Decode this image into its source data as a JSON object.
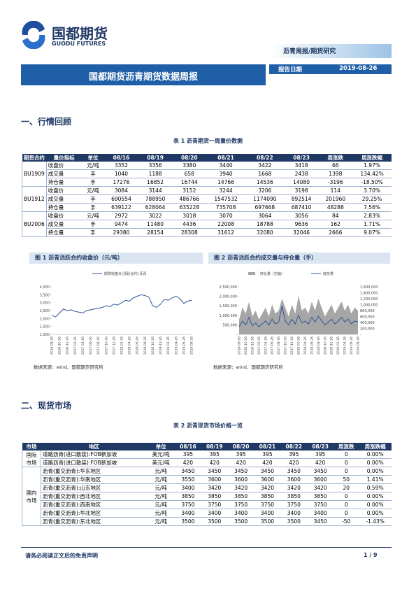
{
  "header": {
    "logo_cn": "国都期货",
    "logo_en": "GUODU FUTURES",
    "category": "沥青周报/期货研究",
    "title": "国都期货沥青期货数据周报",
    "date_label": "报告日期",
    "date": "2019-08-26"
  },
  "section1": {
    "heading": "一、行情回顾",
    "table": {
      "title": "表 1 沥青期货一周量价数据",
      "header": [
        "期货合约",
        "量价指标",
        "单位",
        "08/16",
        "08/19",
        "08/20",
        "08/21",
        "08/22",
        "08/23",
        "周涨跌",
        "周涨跌幅"
      ],
      "groups": [
        {
          "name": "BU1909",
          "rows": [
            [
              "收盘价",
              "元/吨",
              "3352",
              "3356",
              "3380",
              "3440",
              "3422",
              "3418",
              "66",
              "1.97%"
            ],
            [
              "成交量",
              "手",
              "1040",
              "1188",
              "658",
              "3940",
              "1668",
              "2438",
              "1398",
              "134.42%"
            ],
            [
              "持仓量",
              "手",
              "17276",
              "16852",
              "16744",
              "14766",
              "14536",
              "14080",
              "-3196",
              "-18.50%"
            ]
          ]
        },
        {
          "name": "BU1912",
          "rows": [
            [
              "收盘价",
              "元/吨",
              "3084",
              "3144",
              "3152",
              "3244",
              "3206",
              "3198",
              "114",
              "3.70%"
            ],
            [
              "成交量",
              "手",
              "690554",
              "788950",
              "486766",
              "1547532",
              "1174090",
              "892514",
              "201960",
              "29.25%"
            ],
            [
              "持仓量",
              "手",
              "639122",
              "628064",
              "635228",
              "735708",
              "697668",
              "687410",
              "48288",
              "7.56%"
            ]
          ]
        },
        {
          "name": "BU2006",
          "rows": [
            [
              "收盘价",
              "元/吨",
              "2972",
              "3022",
              "3018",
              "3070",
              "3064",
              "3056",
              "84",
              "2.83%"
            ],
            [
              "成交量",
              "手",
              "9474",
              "11480",
              "4436",
              "22008",
              "18788",
              "9636",
              "162",
              "1.71%"
            ],
            [
              "持仓量",
              "手",
              "29380",
              "28154",
              "28308",
              "31612",
              "32080",
              "32046",
              "2666",
              "9.07%"
            ]
          ]
        }
      ]
    }
  },
  "chart_data": [
    {
      "type": "line",
      "title": "图 1 沥青活跃合约收盘价（元/吨）",
      "source": "数据来源：wind、国都期货研究所",
      "categories": [
        "2016-08-26",
        null,
        "2016-10-26",
        null,
        "2016-12-26",
        null,
        "2017-02-26",
        null,
        "2017-04-26",
        null,
        "2017-06-26",
        null,
        "2017-08-26",
        null,
        "2017-10-26",
        null,
        "2017-12-26",
        null,
        "2018-02-26",
        null,
        "2018-04-26",
        null,
        "2018-06-26",
        null,
        "2018-08-26",
        null,
        "2018-10-26",
        null,
        "2018-12-26",
        null,
        "2019-02-26",
        null,
        "2019-04-26",
        null,
        "2019-06-26",
        null,
        "2019-08-26"
      ],
      "series": [
        {
          "name": "期货收盘价(活跃合约):沥青",
          "color": "#2e5597",
          "values": [
            2200,
            2100,
            2350,
            2600,
            2500,
            2550,
            2450,
            2400,
            2350,
            2500,
            2550,
            2600,
            2650,
            2700,
            2800,
            2750,
            2900,
            2850,
            3000,
            3150,
            3100,
            3300,
            3400,
            3500,
            3450,
            3350,
            2800,
            2700,
            2900,
            3200,
            3150,
            3300,
            3400,
            3250,
            2950,
            3100,
            3150
          ]
        }
      ],
      "ylim": [
        1000,
        4000
      ],
      "yticks": [
        {
          "value": 1000,
          "label": "1,000"
        },
        {
          "value": 1500,
          "label": "1,500"
        },
        {
          "value": 2000,
          "label": "2,000"
        },
        {
          "value": 2500,
          "label": "2,500"
        },
        {
          "value": 3000,
          "label": "3,000"
        },
        {
          "value": 3500,
          "label": "3,500"
        },
        {
          "value": 4000,
          "label": "4,000"
        }
      ]
    },
    {
      "type": "area",
      "title": "图 2 沥青活跃合约成交量与持仓量（手）",
      "source": "数据来源：wind、国都期货研究所",
      "categories": [
        "2016-08-26",
        null,
        "2016-10-26",
        null,
        "2016-12-26",
        null,
        "2017-02-26",
        null,
        "2017-04-26",
        null,
        "2017-06-26",
        null,
        "2017-08-26",
        null,
        "2017-10-26",
        null,
        "2017-12-26",
        null,
        "2018-02-26",
        null,
        "2018-04-26",
        null,
        "2018-06-26",
        null,
        "2018-08-26",
        null,
        "2018-10-26",
        null,
        "2018-12-26",
        null,
        "2019-02-26",
        null,
        "2019-04-26",
        null,
        "2019-06-26",
        null,
        "2019-08-26"
      ],
      "series": [
        {
          "name": "持仓量（右轴）",
          "color": "#a6a6a6",
          "axis": "y2",
          "values": [
            500000,
            900000,
            700000,
            1100000,
            600000,
            800000,
            500000,
            700000,
            900000,
            600000,
            1000000,
            700000,
            800000,
            1200000,
            900000,
            600000,
            1000000,
            700000,
            1300000,
            800000,
            900000,
            700000,
            1100000,
            800000,
            1200000,
            900000,
            600000,
            800000,
            1000000,
            700000,
            900000,
            1100000,
            800000,
            1000000,
            700000,
            900000,
            800000
          ]
        },
        {
          "name": "成交量",
          "color": "#2e5597",
          "values": [
            400000,
            700000,
            500000,
            900000,
            450000,
            600000,
            400000,
            550000,
            700000,
            500000,
            800000,
            550000,
            650000,
            1500000,
            700000,
            500000,
            800000,
            550000,
            1000000,
            600000,
            700000,
            550000,
            900000,
            650000,
            950000,
            700000,
            500000,
            650000,
            800000,
            550000,
            700000,
            900000,
            650000,
            800000,
            550000,
            700000,
            650000
          ]
        }
      ],
      "ylim": [
        0,
        2500000
      ],
      "yticks": [
        {
          "value": 0,
          "label": "-"
        },
        {
          "value": 500000,
          "label": "500,000"
        },
        {
          "value": 1000000,
          "label": "1,000,000"
        },
        {
          "value": 1500000,
          "label": "1,500,000"
        },
        {
          "value": 2000000,
          "label": "2,000,000"
        },
        {
          "value": 2500000,
          "label": "2,500,000"
        }
      ],
      "y2lim": [
        0,
        1600000
      ],
      "y2ticks": [
        {
          "value": 0,
          "label": "-"
        },
        {
          "value": 200000,
          "label": "200,000"
        },
        {
          "value": 400000,
          "label": "400,000"
        },
        {
          "value": 600000,
          "label": "600,000"
        },
        {
          "value": 800000,
          "label": "800,000"
        },
        {
          "value": 1000000,
          "label": "1,000,000"
        },
        {
          "value": 1200000,
          "label": "1,200,000"
        },
        {
          "value": 1400000,
          "label": "1,400,000"
        },
        {
          "value": 1600000,
          "label": "1,600,000"
        }
      ]
    }
  ],
  "section2": {
    "heading": "二、现货市场",
    "table": {
      "title": "表 2 沥青现货市场价格一览",
      "header": [
        "市场",
        "地区",
        "单位",
        "08/16",
        "08/19",
        "08/20",
        "08/21",
        "08/22",
        "08/23",
        "周涨跌",
        "周涨跌幅"
      ],
      "groups": [
        {
          "name": "国际市场",
          "rows": [
            [
              "道路沥青(进口散装):FOB新加坡",
              "美元/吨",
              "395",
              "395",
              "395",
              "395",
              "395",
              "395",
              "0",
              "0.00%"
            ],
            [
              "道路沥青(进口散装):FOB新加坡",
              "美元/吨",
              "420",
              "420",
              "420",
              "420",
              "420",
              "420",
              "0",
              "0.00%"
            ]
          ]
        },
        {
          "name": "国内市场",
          "rows": [
            [
              "沥青(重交沥青):华东地区",
              "元/吨",
              "3450",
              "3450",
              "3450",
              "3450",
              "3450",
              "3450",
              "0",
              "0.00%"
            ],
            [
              "沥青(重交沥青):华南地区",
              "元/吨",
              "3550",
              "3600",
              "3600",
              "3600",
              "3600",
              "3600",
              "50",
              "1.41%"
            ],
            [
              "沥青(重交沥青):山东地区",
              "元/吨",
              "3400",
              "3420",
              "3420",
              "3420",
              "3420",
              "3420",
              "20",
              "0.59%"
            ],
            [
              "沥青(重交沥青):西北地区",
              "元/吨",
              "3850",
              "3850",
              "3850",
              "3850",
              "3850",
              "3850",
              "0",
              "0.00%"
            ],
            [
              "沥青(重交沥青):西南地区",
              "元/吨",
              "3750",
              "3750",
              "3750",
              "3750",
              "3750",
              "3750",
              "0",
              "0.00%"
            ],
            [
              "沥青(重交沥青):华北地区",
              "元/吨",
              "3400",
              "3400",
              "3400",
              "3400",
              "3400",
              "3400",
              "0",
              "0.00%"
            ],
            [
              "沥青(重交沥青):东北地区",
              "元/吨",
              "3500",
              "3500",
              "3500",
              "3500",
              "3500",
              "3450",
              "-50",
              "-1.43%"
            ]
          ]
        }
      ]
    }
  },
  "footer": {
    "disclaimer": "请务必阅读正文后的免责声明",
    "page": "1 / 9"
  }
}
